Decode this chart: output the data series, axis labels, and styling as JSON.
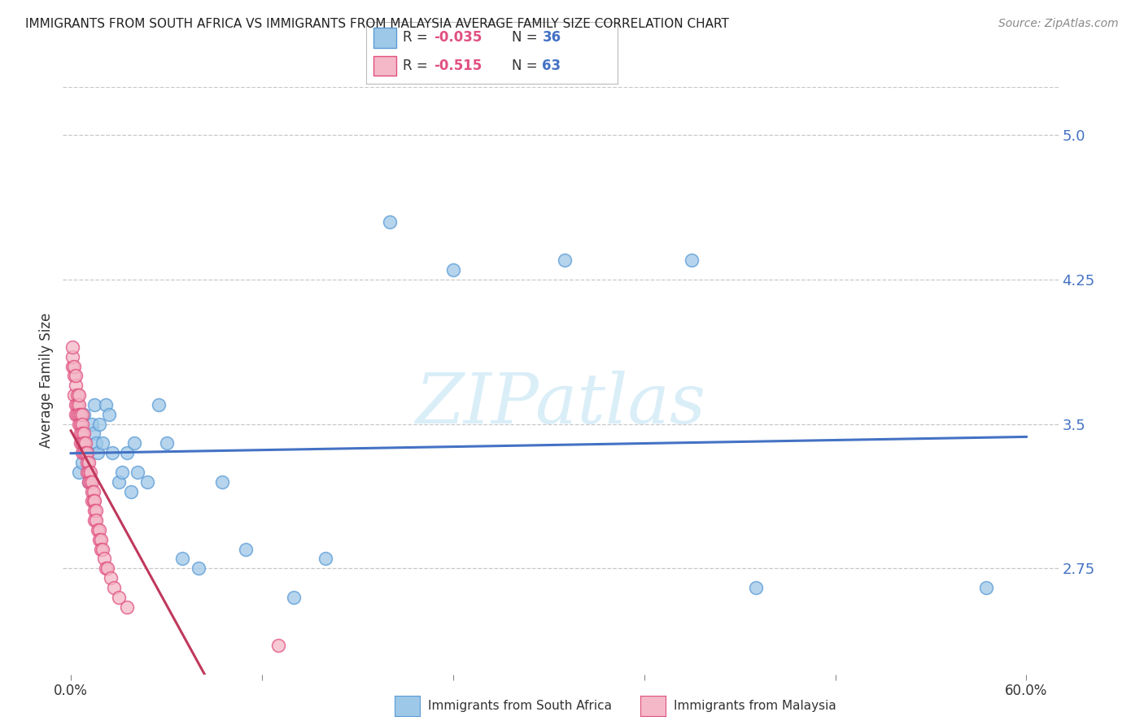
{
  "title": "IMMIGRANTS FROM SOUTH AFRICA VS IMMIGRANTS FROM MALAYSIA AVERAGE FAMILY SIZE CORRELATION CHART",
  "source": "Source: ZipAtlas.com",
  "ylabel": "Average Family Size",
  "yticks": [
    2.75,
    3.5,
    4.25,
    5.0
  ],
  "xlim": [
    -0.005,
    0.62
  ],
  "ylim": [
    2.2,
    5.25
  ],
  "watermark": "ZIPatlas",
  "legend": {
    "series1_label": "Immigrants from South Africa",
    "series1_R": "-0.035",
    "series1_N": "36",
    "series2_label": "Immigrants from Malaysia",
    "series2_R": "-0.515",
    "series2_N": "63"
  },
  "south_africa_x": [
    0.005,
    0.007,
    0.008,
    0.01,
    0.011,
    0.013,
    0.014,
    0.015,
    0.016,
    0.017,
    0.018,
    0.02,
    0.022,
    0.024,
    0.026,
    0.03,
    0.032,
    0.035,
    0.038,
    0.04,
    0.042,
    0.048,
    0.055,
    0.06,
    0.07,
    0.08,
    0.095,
    0.11,
    0.14,
    0.16,
    0.2,
    0.24,
    0.31,
    0.39,
    0.43,
    0.575
  ],
  "south_africa_y": [
    3.25,
    3.3,
    3.55,
    3.35,
    3.2,
    3.5,
    3.45,
    3.6,
    3.4,
    3.35,
    3.5,
    3.4,
    3.6,
    3.55,
    3.35,
    3.2,
    3.25,
    3.35,
    3.15,
    3.4,
    3.25,
    3.2,
    3.6,
    3.4,
    2.8,
    2.75,
    3.2,
    2.85,
    2.6,
    2.8,
    4.55,
    4.3,
    4.35,
    4.35,
    2.65,
    2.65
  ],
  "malaysia_x": [
    0.001,
    0.001,
    0.001,
    0.002,
    0.002,
    0.002,
    0.003,
    0.003,
    0.003,
    0.003,
    0.004,
    0.004,
    0.004,
    0.005,
    0.005,
    0.005,
    0.005,
    0.006,
    0.006,
    0.006,
    0.006,
    0.007,
    0.007,
    0.007,
    0.007,
    0.007,
    0.008,
    0.008,
    0.008,
    0.009,
    0.009,
    0.01,
    0.01,
    0.01,
    0.011,
    0.011,
    0.011,
    0.012,
    0.012,
    0.013,
    0.013,
    0.013,
    0.014,
    0.014,
    0.015,
    0.015,
    0.015,
    0.016,
    0.016,
    0.017,
    0.018,
    0.018,
    0.019,
    0.019,
    0.02,
    0.021,
    0.022,
    0.023,
    0.025,
    0.027,
    0.03,
    0.035,
    0.13
  ],
  "malaysia_y": [
    3.8,
    3.85,
    3.9,
    3.75,
    3.8,
    3.65,
    3.7,
    3.75,
    3.6,
    3.55,
    3.65,
    3.6,
    3.55,
    3.6,
    3.65,
    3.55,
    3.5,
    3.55,
    3.5,
    3.45,
    3.4,
    3.55,
    3.5,
    3.45,
    3.4,
    3.35,
    3.45,
    3.4,
    3.35,
    3.4,
    3.35,
    3.35,
    3.3,
    3.25,
    3.3,
    3.25,
    3.2,
    3.25,
    3.2,
    3.2,
    3.15,
    3.1,
    3.15,
    3.1,
    3.1,
    3.05,
    3.0,
    3.05,
    3.0,
    2.95,
    2.95,
    2.9,
    2.9,
    2.85,
    2.85,
    2.8,
    2.75,
    2.75,
    2.7,
    2.65,
    2.6,
    2.55,
    2.35
  ],
  "sa_color": "#9ec8e8",
  "sa_edge_color": "#5b9bd5",
  "malaysia_color": "#f4b8c8",
  "malaysia_edge_color": "#e05080",
  "sa_line_color": "#4472c4",
  "malaysia_line_color": "#c0385c",
  "background": "#ffffff",
  "grid_color": "#c8c8c8",
  "title_color": "#222222",
  "right_axis_color": "#4472c4",
  "watermark_color": "#daeef8",
  "sa_line_x_start": 0.0,
  "sa_line_x_end": 0.6,
  "malaysia_line_x_start": 0.0,
  "malaysia_line_x_end": 0.14
}
